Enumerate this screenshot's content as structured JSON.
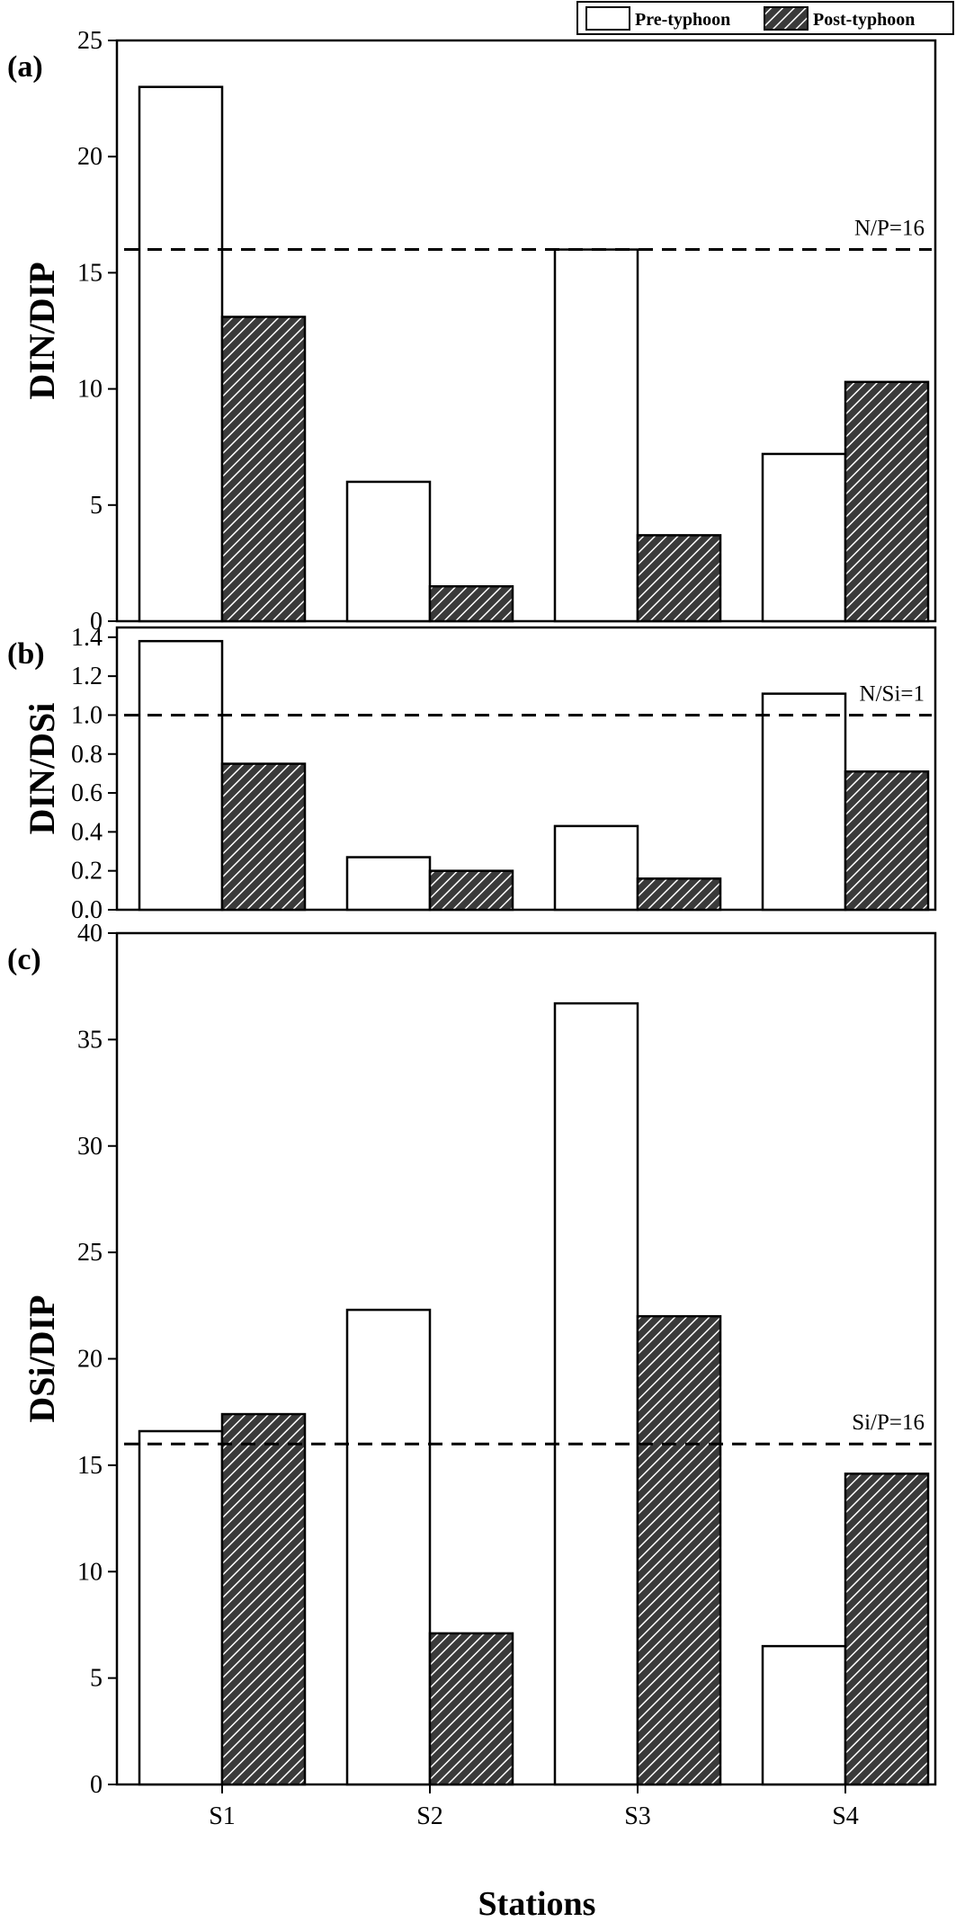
{
  "legend": {
    "pre": "Pre-typhoon",
    "post": "Post-typhoon"
  },
  "colors": {
    "pre_fill": "#ffffff",
    "post_fill": "#3a3a3a",
    "hatch": "#ffffff",
    "stroke": "#000000"
  },
  "xlabel": "Stations",
  "chart_data": [
    {
      "type": "bar",
      "panel_label": "(a)",
      "categories": [
        "S1",
        "S2",
        "S3",
        "S4"
      ],
      "series": [
        {
          "name": "Pre-typhoon",
          "values": [
            23.0,
            6.0,
            16.0,
            7.2
          ]
        },
        {
          "name": "Post-typhoon",
          "values": [
            13.1,
            1.5,
            3.7,
            10.3
          ]
        }
      ],
      "ylabel": "DIN/DIP",
      "ylim": [
        0,
        25
      ],
      "yticks": [
        "0",
        "5",
        "10",
        "15",
        "20",
        "25"
      ],
      "reference": {
        "value": 16,
        "label": "N/P=16"
      }
    },
    {
      "type": "bar",
      "panel_label": "(b)",
      "categories": [
        "S1",
        "S2",
        "S3",
        "S4"
      ],
      "series": [
        {
          "name": "Pre-typhoon",
          "values": [
            1.38,
            0.27,
            0.43,
            1.11
          ]
        },
        {
          "name": "Post-typhoon",
          "values": [
            0.75,
            0.2,
            0.16,
            0.71
          ]
        }
      ],
      "ylabel": "DIN/DSi",
      "ylim": [
        0,
        1.45
      ],
      "yticks": [
        "0.0",
        "0.2",
        "0.4",
        "0.6",
        "0.8",
        "1.0",
        "1.2",
        "1.4"
      ],
      "reference": {
        "value": 1.0,
        "label": "N/Si=1"
      }
    },
    {
      "type": "bar",
      "panel_label": "(c)",
      "categories": [
        "S1",
        "S2",
        "S3",
        "S4"
      ],
      "series": [
        {
          "name": "Pre-typhoon",
          "values": [
            16.6,
            22.3,
            36.7,
            6.5
          ]
        },
        {
          "name": "Post-typhoon",
          "values": [
            17.4,
            7.1,
            22.0,
            14.6
          ]
        }
      ],
      "ylabel": "DSi/DIP",
      "ylim": [
        0,
        40
      ],
      "yticks": [
        "0",
        "5",
        "10",
        "15",
        "20",
        "25",
        "30",
        "35",
        "40"
      ],
      "reference": {
        "value": 16,
        "label": "Si/P=16"
      }
    }
  ]
}
